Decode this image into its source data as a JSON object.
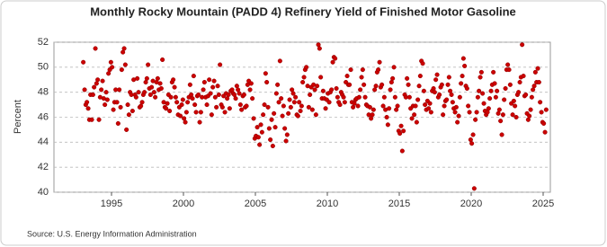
{
  "chart_data": {
    "type": "scatter",
    "title": "Monthly Rocky Mountain (PADD 4) Refinery Yield of Finished Motor Gasoline",
    "ylabel": "Percent",
    "source": "Source: U.S. Energy Information Administration",
    "color": "#cc0000",
    "xlim": [
      1991,
      2025.5
    ],
    "xticks": [
      1995,
      2000,
      2005,
      2010,
      2015,
      2020,
      2025
    ],
    "ylim": [
      40,
      52
    ],
    "yticks": [
      40,
      42,
      44,
      46,
      48,
      50,
      52
    ],
    "grid": true,
    "x": [
      1993.04,
      1993.13,
      1993.21,
      1993.29,
      1993.38,
      1993.46,
      1993.54,
      1993.63,
      1993.71,
      1993.79,
      1993.88,
      1993.96,
      1994.04,
      1994.13,
      1994.21,
      1994.29,
      1994.38,
      1994.46,
      1994.54,
      1994.63,
      1994.71,
      1994.79,
      1994.88,
      1994.96,
      1995.04,
      1995.13,
      1995.21,
      1995.29,
      1995.38,
      1995.46,
      1995.54,
      1995.63,
      1995.71,
      1995.79,
      1995.88,
      1995.96,
      1996.04,
      1996.13,
      1996.21,
      1996.29,
      1996.38,
      1996.46,
      1996.54,
      1996.63,
      1996.71,
      1996.79,
      1996.88,
      1996.96,
      1997.04,
      1997.13,
      1997.21,
      1997.29,
      1997.38,
      1997.46,
      1997.54,
      1997.63,
      1997.71,
      1997.79,
      1997.88,
      1997.96,
      1998.04,
      1998.13,
      1998.21,
      1998.29,
      1998.38,
      1998.46,
      1998.54,
      1998.63,
      1998.71,
      1998.79,
      1998.88,
      1998.96,
      1999.04,
      1999.13,
      1999.21,
      1999.29,
      1999.38,
      1999.46,
      1999.54,
      1999.63,
      1999.71,
      1999.79,
      1999.88,
      1999.96,
      2000.04,
      2000.13,
      2000.21,
      2000.29,
      2000.38,
      2000.46,
      2000.54,
      2000.63,
      2000.71,
      2000.79,
      2000.88,
      2000.96,
      2001.04,
      2001.13,
      2001.21,
      2001.29,
      2001.38,
      2001.46,
      2001.54,
      2001.63,
      2001.71,
      2001.79,
      2001.88,
      2001.96,
      2002.04,
      2002.13,
      2002.21,
      2002.29,
      2002.38,
      2002.46,
      2002.54,
      2002.63,
      2002.71,
      2002.79,
      2002.88,
      2002.96,
      2003.04,
      2003.13,
      2003.21,
      2003.29,
      2003.38,
      2003.46,
      2003.54,
      2003.63,
      2003.71,
      2003.79,
      2003.88,
      2003.96,
      2004.04,
      2004.13,
      2004.21,
      2004.29,
      2004.38,
      2004.46,
      2004.54,
      2004.63,
      2004.71,
      2004.79,
      2004.88,
      2004.96,
      2005.04,
      2005.13,
      2005.21,
      2005.29,
      2005.38,
      2005.46,
      2005.54,
      2005.63,
      2005.71,
      2005.79,
      2005.88,
      2005.96,
      2006.04,
      2006.13,
      2006.21,
      2006.29,
      2006.38,
      2006.46,
      2006.54,
      2006.63,
      2006.71,
      2006.79,
      2006.88,
      2006.96,
      2007.04,
      2007.13,
      2007.21,
      2007.29,
      2007.38,
      2007.46,
      2007.54,
      2007.63,
      2007.71,
      2007.79,
      2007.88,
      2007.96,
      2008.04,
      2008.13,
      2008.21,
      2008.29,
      2008.38,
      2008.46,
      2008.54,
      2008.63,
      2008.71,
      2008.79,
      2008.88,
      2008.96,
      2009.04,
      2009.13,
      2009.21,
      2009.29,
      2009.38,
      2009.46,
      2009.54,
      2009.63,
      2009.71,
      2009.79,
      2009.88,
      2009.96,
      2010.04,
      2010.13,
      2010.21,
      2010.29,
      2010.38,
      2010.46,
      2010.54,
      2010.63,
      2010.71,
      2010.79,
      2010.88,
      2010.96,
      2011.04,
      2011.13,
      2011.21,
      2011.29,
      2011.38,
      2011.46,
      2011.54,
      2011.63,
      2011.71,
      2011.79,
      2011.88,
      2011.96,
      2012.04,
      2012.13,
      2012.21,
      2012.29,
      2012.38,
      2012.46,
      2012.54,
      2012.63,
      2012.71,
      2012.79,
      2012.88,
      2012.96,
      2013.04,
      2013.13,
      2013.21,
      2013.29,
      2013.38,
      2013.46,
      2013.54,
      2013.63,
      2013.71,
      2013.79,
      2013.88,
      2013.96,
      2014.04,
      2014.13,
      2014.21,
      2014.29,
      2014.38,
      2014.46,
      2014.54,
      2014.63,
      2014.71,
      2014.79,
      2014.88,
      2014.96,
      2015.04,
      2015.13,
      2015.21,
      2015.29,
      2015.38,
      2015.46,
      2015.54,
      2015.63,
      2015.71,
      2015.79,
      2015.88,
      2015.96,
      2016.04,
      2016.13,
      2016.21,
      2016.29,
      2016.38,
      2016.46,
      2016.54,
      2016.63,
      2016.71,
      2016.79,
      2016.88,
      2016.96,
      2017.04,
      2017.13,
      2017.21,
      2017.29,
      2017.38,
      2017.46,
      2017.54,
      2017.63,
      2017.71,
      2017.79,
      2017.88,
      2017.96,
      2018.04,
      2018.13,
      2018.21,
      2018.29,
      2018.38,
      2018.46,
      2018.54,
      2018.63,
      2018.71,
      2018.79,
      2018.88,
      2018.96,
      2019.04,
      2019.13,
      2019.21,
      2019.29,
      2019.38,
      2019.46,
      2019.54,
      2019.63,
      2019.71,
      2019.79,
      2019.88,
      2019.96,
      2020.04,
      2020.13,
      2020.21,
      2020.29,
      2020.38,
      2020.46,
      2020.54,
      2020.63,
      2020.71,
      2020.79,
      2020.88,
      2020.96,
      2021.04,
      2021.13,
      2021.21,
      2021.29,
      2021.38,
      2021.46,
      2021.54,
      2021.63,
      2021.71,
      2021.79,
      2021.88,
      2021.96,
      2022.04,
      2022.13,
      2022.21,
      2022.29,
      2022.38,
      2022.46,
      2022.54,
      2022.63,
      2022.71,
      2022.79,
      2022.88,
      2022.96,
      2023.04,
      2023.13,
      2023.21,
      2023.29,
      2023.38,
      2023.46,
      2023.54,
      2023.63,
      2023.71,
      2023.79,
      2023.88,
      2023.96,
      2024.04,
      2024.13,
      2024.21,
      2024.29,
      2024.38,
      2024.46,
      2024.54,
      2024.63,
      2024.71,
      2024.79,
      2024.88,
      2024.96,
      2025.04,
      2025.13,
      2025.21
    ],
    "values": [
      50.4,
      48.2,
      47.0,
      47.2,
      46.7,
      45.8,
      47.8,
      45.8,
      47.8,
      48.4,
      51.5,
      48.7,
      49.0,
      45.8,
      47.6,
      48.2,
      48.9,
      47.5,
      47.0,
      48.0,
      47.4,
      49.5,
      49.8,
      50.4,
      50.0,
      46.6,
      47.2,
      48.2,
      47.2,
      45.5,
      48.2,
      46.8,
      49.8,
      51.2,
      51.5,
      50.2,
      45.0,
      47.0,
      46.2,
      48.0,
      47.8,
      46.5,
      49.0,
      47.8,
      47.6,
      49.1,
      48.0,
      46.8,
      46.9,
      47.2,
      47.8,
      48.0,
      48.8,
      49.1,
      50.2,
      48.3,
      47.8,
      48.4,
      48.9,
      48.0,
      47.6,
      48.8,
      49.1,
      48.2,
      48.7,
      48.3,
      50.6,
      47.2,
      46.8,
      46.7,
      47.1,
      47.8,
      46.5,
      47.6,
      48.8,
      49.0,
      48.4,
      47.6,
      47.2,
      46.2,
      46.8,
      46.1,
      47.0,
      47.4,
      45.9,
      45.6,
      46.4,
      47.2,
      47.6,
      48.6,
      47.8,
      47.5,
      49.3,
      47.0,
      46.4,
      47.7,
      47.8,
      45.6,
      46.4,
      47.6,
      48.2,
      48.8,
      47.6,
      47.0,
      47.7,
      49.0,
      47.9,
      46.2,
      48.4,
      48.9,
      47.6,
      46.8,
      48.5,
      47.8,
      50.2,
      47.0,
      46.8,
      47.7,
      46.4,
      47.9,
      47.5,
      47.8,
      46.7,
      48.1,
      48.2,
      47.9,
      47.8,
      47.5,
      48.5,
      48.2,
      47.9,
      47.0,
      46.6,
      47.7,
      47.8,
      46.8,
      46.9,
      48.6,
      48.9,
      48.2,
      48.7,
      47.5,
      45.9,
      44.3,
      44.5,
      45.2,
      44.4,
      43.8,
      45.4,
      44.8,
      46.2,
      47.0,
      49.5,
      48.8,
      46.8,
      45.1,
      44.2,
      45.8,
      43.7,
      46.3,
      45.2,
      47.9,
      48.6,
      47.2,
      50.5,
      47.5,
      46.1,
      46.9,
      45.1,
      44.1,
      44.6,
      46.3,
      47.4,
      46.8,
      48.2,
      47.9,
      47.2,
      47.6,
      46.2,
      46.1,
      47.2,
      46.5,
      46.9,
      48.8,
      49.2,
      49.8,
      50.0,
      48.5,
      46.8,
      47.8,
      48.4,
      46.6,
      48.6,
      48.2,
      46.2,
      48.5,
      51.8,
      51.5,
      49.2,
      47.5,
      48.1,
      47.5,
      46.7,
      47.4,
      47.9,
      47.2,
      48.0,
      48.2,
      50.4,
      50.8,
      50.7,
      48.3,
      47.6,
      47.2,
      47.0,
      48.0,
      47.8,
      47.6,
      47.2,
      48.8,
      49.3,
      48.6,
      48.6,
      49.8,
      47.2,
      46.8,
      47.1,
      47.4,
      47.5,
      46.9,
      47.6,
      48.2,
      49.2,
      49.8,
      48.6,
      47.6,
      47.0,
      46.9,
      46.2,
      46.8,
      45.9,
      46.2,
      46.6,
      48.2,
      48.5,
      49.6,
      49.8,
      50.4,
      48.4,
      48.6,
      46.9,
      47.6,
      46.6,
      46.0,
      45.4,
      46.7,
      48.2,
      48.8,
      49.1,
      50.0,
      47.6,
      46.6,
      46.9,
      44.9,
      44.7,
      45.3,
      43.3,
      44.9,
      47.8,
      47.6,
      49.1,
      48.6,
      47.6,
      46.7,
      45.9,
      46.9,
      46.2,
      46.9,
      45.6,
      47.4,
      48.5,
      49.3,
      50.5,
      50.3,
      48.1,
      47.0,
      46.6,
      47.3,
      46.7,
      47.1,
      46.4,
      48.1,
      48.3,
      48.0,
      49.0,
      49.4,
      47.6,
      47.8,
      48.4,
      48.6,
      46.2,
      46.9,
      47.3,
      47.4,
      48.6,
      49.2,
      48.1,
      47.8,
      47.2,
      46.7,
      46.4,
      46.8,
      45.6,
      46.1,
      47.6,
      48.7,
      49.3,
      50.7,
      50.1,
      48.5,
      48.3,
      46.9,
      46.4,
      44.2,
      43.9,
      44.6,
      40.3,
      45.8,
      46.4,
      47.6,
      48.1,
      49.2,
      49.6,
      47.9,
      47.1,
      46.5,
      46.2,
      46.4,
      46.7,
      47.5,
      48.1,
      48.6,
      49.6,
      48.7,
      47.6,
      48.1,
      46.3,
      46.6,
      45.7,
      44.6,
      46.2,
      47.4,
      48.3,
      49.8,
      50.2,
      49.8,
      48.6,
      47.1,
      46.2,
      47.3,
      46.9,
      46.0,
      47.8,
      48.0,
      48.8,
      49.2,
      51.8,
      49.3,
      47.7,
      47.8,
      46.3,
      45.8,
      46.1,
      46.6,
      47.6,
      48.2,
      48.5,
      49.6,
      48.8,
      49.9,
      48.8,
      47.2,
      46.4,
      45.6,
      45.5,
      44.8,
      46.6
    ]
  }
}
